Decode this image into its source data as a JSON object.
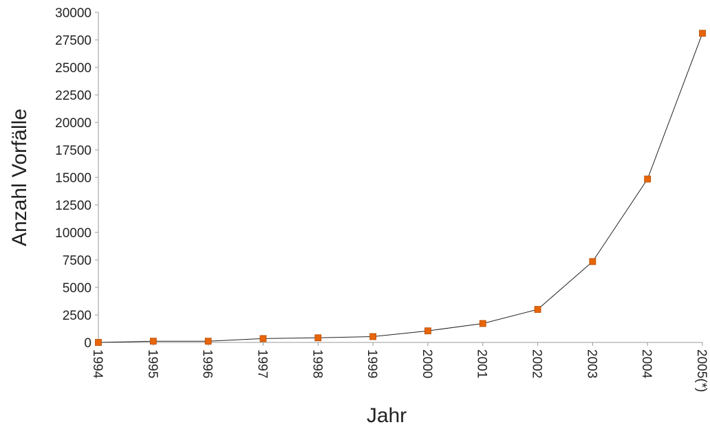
{
  "chart_data": {
    "type": "line",
    "title": "",
    "xlabel": "Jahr",
    "ylabel": "Anzahl Vorfälle",
    "categories": [
      "1994",
      "1995",
      "1996",
      "1997",
      "1998",
      "1999",
      "2000",
      "2001",
      "2002",
      "2003",
      "2004",
      "2005(*)"
    ],
    "series": [
      {
        "values": [
          0,
          110,
          110,
          350,
          420,
          530,
          1050,
          1720,
          3000,
          7350,
          14850,
          28100
        ]
      }
    ],
    "ylim": [
      0,
      30000
    ],
    "yticks": [
      0,
      2500,
      5000,
      7500,
      10000,
      12500,
      15000,
      17500,
      20000,
      22500,
      25000,
      27500,
      30000
    ],
    "grid": false,
    "legend": "none",
    "colors": {
      "marker": "#e8650a",
      "marker_edge": "#b34a00",
      "line": "#222222",
      "axis": "#999999",
      "text": "#222222"
    }
  }
}
